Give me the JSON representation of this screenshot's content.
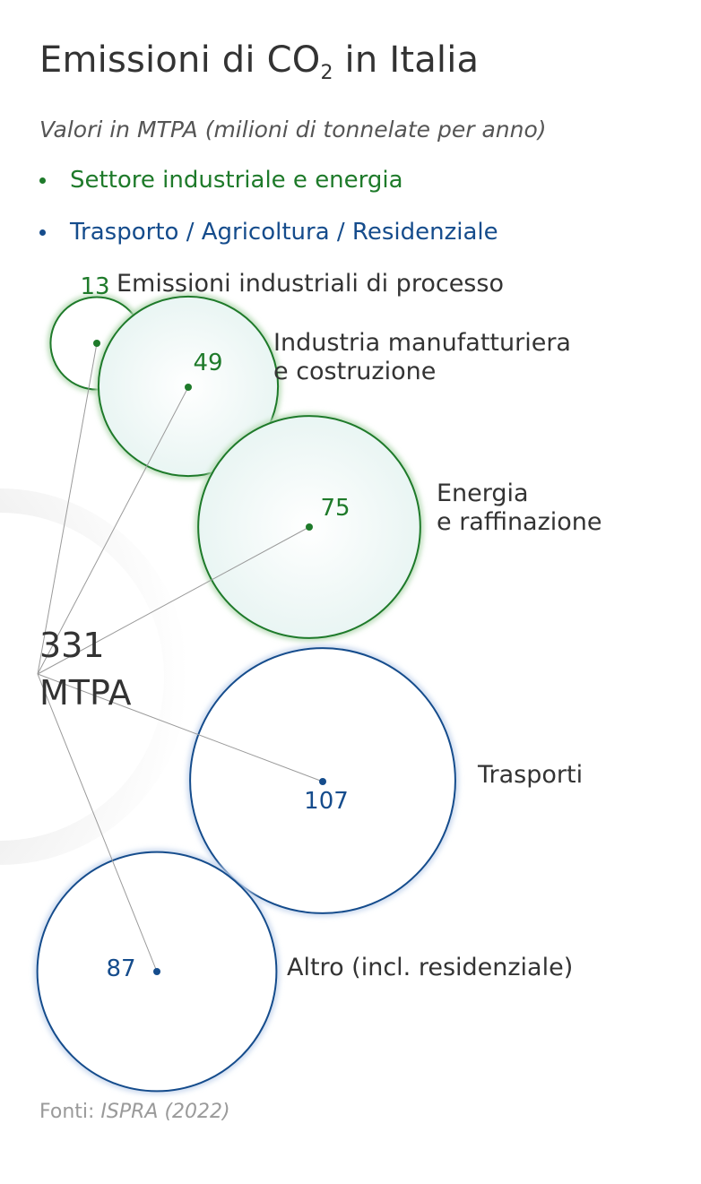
{
  "title": {
    "prefix": "Emissioni di CO",
    "sub": "2",
    "suffix": " in Italia"
  },
  "subtitle": "Valori in MTPA (milioni di tonnelate per anno)",
  "legend": [
    {
      "label": "Settore industriale e energia",
      "color": "#1e7a2a"
    },
    {
      "label": "Trasporto / Agricoltura / Residenziale",
      "color": "#154c8c"
    }
  ],
  "source": {
    "prefix": "Fonti: ",
    "name": "ISPRA (2022)"
  },
  "chart_data": {
    "type": "bubble",
    "title": "Emissioni di CO2 in Italia",
    "unit": "MTPA",
    "total": {
      "value": "331",
      "unit": "MTPA"
    },
    "series": [
      {
        "name": "Settore industriale e energia",
        "color": "#1e7a2a"
      },
      {
        "name": "Trasporto / Agricoltura / Residenziale",
        "color": "#154c8c"
      }
    ],
    "points": [
      {
        "label": "Emissioni industriali di processo",
        "value": 13,
        "series": 0
      },
      {
        "label": "Industria manufatturiera\ne costruzione",
        "value": 49,
        "series": 0
      },
      {
        "label": "Energia\ne raffinazione",
        "value": 75,
        "series": 0
      },
      {
        "label": "Trasporti",
        "value": 107,
        "series": 1
      },
      {
        "label": "Altro (incl. residenziale)",
        "value": 87,
        "series": 1
      }
    ]
  }
}
